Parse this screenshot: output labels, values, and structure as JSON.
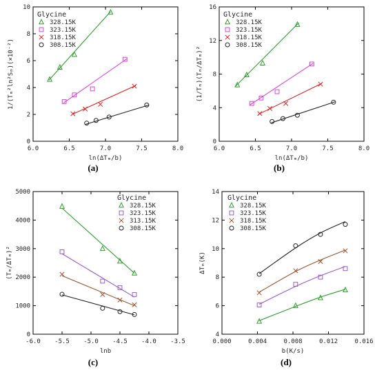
{
  "chart_data": [
    {
      "type": "scatter",
      "panel_label": "(a)",
      "xlabel": "ln(ΔTₘ/b)",
      "ylabel": "1/(Tₘ²ln²Sₘ)(×10⁻²)",
      "xlim": [
        6.0,
        8.0
      ],
      "ylim": [
        0,
        10
      ],
      "xticks": [
        "6.0",
        "6.5",
        "7.0",
        "7.5",
        "8.0"
      ],
      "yticks": [
        "0",
        "2",
        "4",
        "6",
        "8",
        "10"
      ],
      "legend_title": "Glycine",
      "legend_position": "top-left",
      "series": [
        {
          "name": "328.15K",
          "marker": "triangle",
          "color": "#2ca02c",
          "x": [
            6.23,
            6.37,
            6.57,
            7.07
          ],
          "y": [
            4.6,
            5.5,
            6.45,
            9.6
          ],
          "fit": [
            [
              6.22,
              4.55
            ],
            [
              7.07,
              9.65
            ]
          ]
        },
        {
          "name": "323.15K",
          "marker": "square",
          "color": "#e040e0",
          "x": [
            6.43,
            6.57,
            6.82,
            7.27
          ],
          "y": [
            2.95,
            3.45,
            3.9,
            6.1
          ],
          "fit": [
            [
              6.42,
              2.85
            ],
            [
              7.3,
              6.15
            ]
          ]
        },
        {
          "name": "318.15K",
          "marker": "x",
          "color": "#e02020",
          "x": [
            6.55,
            6.72,
            6.93,
            7.4
          ],
          "y": [
            2.05,
            2.4,
            2.75,
            4.1
          ],
          "fit": [
            [
              6.54,
              2.0
            ],
            [
              7.42,
              4.15
            ]
          ]
        },
        {
          "name": "308.15K",
          "marker": "circle",
          "color": "#222222",
          "x": [
            6.74,
            6.87,
            7.05,
            7.57
          ],
          "y": [
            1.35,
            1.55,
            1.8,
            2.7
          ],
          "fit": [
            [
              6.72,
              1.25
            ],
            [
              7.6,
              2.7
            ]
          ]
        }
      ]
    },
    {
      "type": "scatter",
      "panel_label": "(b)",
      "xlabel": "ln(ΔTₘ/b)",
      "ylabel": "(1/Tₘ)(Tₘ/ΔTₘ)²",
      "xlim": [
        6.0,
        8.0
      ],
      "ylim": [
        0,
        16
      ],
      "xticks": [
        "6.0",
        "6.5",
        "7.0",
        "7.5",
        "8.0"
      ],
      "yticks": [
        "0",
        "4",
        "8",
        "12",
        "16"
      ],
      "legend_title": "Glycine",
      "legend_position": "top-left",
      "series": [
        {
          "name": "328.15K",
          "marker": "triangle",
          "color": "#2ca02c",
          "x": [
            6.25,
            6.38,
            6.6,
            7.08
          ],
          "y": [
            6.7,
            7.9,
            9.3,
            13.9
          ],
          "fit": [
            [
              6.22,
              6.5
            ],
            [
              7.1,
              14.1
            ]
          ]
        },
        {
          "name": "323.15K",
          "marker": "square",
          "color": "#e040e0",
          "x": [
            6.45,
            6.58,
            6.8,
            7.28
          ],
          "y": [
            4.5,
            5.15,
            5.9,
            9.2
          ],
          "fit": [
            [
              6.42,
              4.3
            ],
            [
              7.3,
              9.3
            ]
          ]
        },
        {
          "name": "318.15K",
          "marker": "x",
          "color": "#e02020",
          "x": [
            6.56,
            6.7,
            6.92,
            7.4
          ],
          "y": [
            3.3,
            3.9,
            4.5,
            6.8
          ],
          "fit": [
            [
              6.54,
              3.2
            ],
            [
              7.42,
              6.9
            ]
          ]
        },
        {
          "name": "308.15K",
          "marker": "circle",
          "color": "#222222",
          "x": [
            6.73,
            6.88,
            7.08,
            7.58
          ],
          "y": [
            2.35,
            2.7,
            3.1,
            4.65
          ],
          "fit": [
            [
              6.72,
              2.2
            ],
            [
              7.6,
              4.7
            ]
          ]
        }
      ]
    },
    {
      "type": "scatter",
      "panel_label": "(c)",
      "xlabel": "lnb",
      "ylabel": "(Tₘ/ΔTₘ)²",
      "xlim": [
        -6.0,
        -3.5
      ],
      "ylim": [
        0,
        5000
      ],
      "xticks": [
        "-6.0",
        "-5.5",
        "-5.0",
        "-4.5",
        "-4.0",
        "-3.5"
      ],
      "yticks": [
        "0",
        "1000",
        "2000",
        "3000",
        "4000",
        "5000"
      ],
      "legend_title": "Glycine",
      "legend_position": "top-right",
      "series": [
        {
          "name": "328.15K",
          "marker": "triangle",
          "color": "#2ca02c",
          "x": [
            -5.5,
            -4.8,
            -4.5,
            -4.25
          ],
          "y": [
            4480,
            3000,
            2560,
            2140
          ],
          "fit": [
            [
              -5.5,
              4420
            ],
            [
              -4.25,
              2140
            ]
          ]
        },
        {
          "name": "323.15K",
          "marker": "square",
          "color": "#9b59d0",
          "x": [
            -5.5,
            -4.8,
            -4.5,
            -4.25
          ],
          "y": [
            2890,
            1860,
            1630,
            1390
          ],
          "fit": [
            [
              -5.5,
              2820
            ],
            [
              -4.25,
              1300
            ]
          ]
        },
        {
          "name": "313.15K",
          "marker": "x",
          "color": "#a0522d",
          "x": [
            -5.5,
            -4.8,
            -4.5,
            -4.25
          ],
          "y": [
            2100,
            1390,
            1200,
            1030
          ],
          "fit": [
            [
              -5.5,
              2050
            ],
            [
              -4.25,
              1000
            ]
          ]
        },
        {
          "name": "308.15K",
          "marker": "circle",
          "color": "#222222",
          "x": [
            -5.5,
            -4.8,
            -4.5,
            -4.25
          ],
          "y": [
            1400,
            910,
            790,
            690
          ],
          "fit": [
            [
              -5.5,
              1380
            ],
            [
              -4.25,
              680
            ]
          ]
        }
      ]
    },
    {
      "type": "scatter",
      "panel_label": "(d)",
      "xlabel": "b(K/s)",
      "ylabel": "ΔTₘ(K)",
      "xlim": [
        0.0,
        0.016
      ],
      "ylim": [
        4,
        14
      ],
      "xticks": [
        "0.000",
        "0.004",
        "0.008",
        "0.012",
        "0.016"
      ],
      "yticks": [
        "4",
        "6",
        "8",
        "10",
        "12",
        "14"
      ],
      "legend_title": "Glycine",
      "legend_position": "top-left",
      "series": [
        {
          "name": "328.15K",
          "marker": "triangle",
          "color": "#2ca02c",
          "x": [
            0.0042,
            0.0083,
            0.0111,
            0.0139
          ],
          "y": [
            4.9,
            6.0,
            6.55,
            7.1
          ],
          "fit": [
            [
              0.0042,
              4.95
            ],
            [
              0.0083,
              5.95
            ],
            [
              0.0111,
              6.6
            ],
            [
              0.0139,
              7.15
            ]
          ]
        },
        {
          "name": "323.15K",
          "marker": "square",
          "color": "#9b59d0",
          "x": [
            0.0042,
            0.0083,
            0.0111,
            0.0139
          ],
          "y": [
            6.05,
            7.5,
            8.0,
            8.6
          ],
          "fit": [
            [
              0.0042,
              6.1
            ],
            [
              0.0083,
              7.35
            ],
            [
              0.0111,
              8.1
            ],
            [
              0.0139,
              8.75
            ]
          ]
        },
        {
          "name": "318.15K",
          "marker": "x",
          "color": "#a0522d",
          "x": [
            0.0042,
            0.0083,
            0.0111,
            0.0139
          ],
          "y": [
            6.9,
            8.45,
            9.1,
            9.85
          ],
          "fit": [
            [
              0.0042,
              6.95
            ],
            [
              0.0083,
              8.4
            ],
            [
              0.0111,
              9.2
            ],
            [
              0.0139,
              9.9
            ]
          ]
        },
        {
          "name": "308.15K",
          "marker": "circle",
          "color": "#222222",
          "x": [
            0.0042,
            0.0083,
            0.0111,
            0.0139
          ],
          "y": [
            8.2,
            10.2,
            11.0,
            11.7
          ],
          "fit": [
            [
              0.0042,
              8.25
            ],
            [
              0.0083,
              10.05
            ],
            [
              0.0111,
              11.1
            ],
            [
              0.0139,
              11.9
            ]
          ]
        }
      ]
    }
  ]
}
